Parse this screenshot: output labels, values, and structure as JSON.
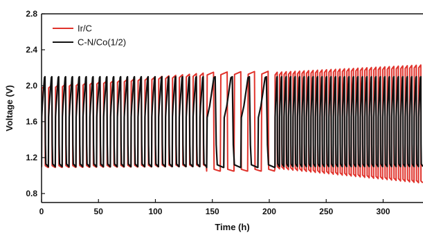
{
  "chart_data": {
    "type": "line",
    "title": "",
    "xlabel": "Time (h)",
    "ylabel": "Voltage (V)",
    "xlim": [
      0,
      335
    ],
    "ylim": [
      0.7,
      2.8
    ],
    "xticks": [
      0,
      50,
      100,
      150,
      200,
      250,
      300
    ],
    "yticks": [
      0.8,
      1.2,
      1.6,
      2.0,
      2.4,
      2.8
    ],
    "legend": "top-left",
    "grid": false,
    "series": [
      {
        "name": "Ir/C",
        "color": "#e0322b",
        "segments": [
          {
            "t0": 0,
            "t1": 145,
            "period": 6,
            "high": [
              2.0,
              2.14
            ],
            "low": [
              1.09,
              1.1
            ]
          },
          {
            "t0": 145,
            "t1": 205,
            "period": 12,
            "high": [
              2.15,
              2.16
            ],
            "low": [
              1.05,
              1.05
            ]
          },
          {
            "t0": 205,
            "t1": 335,
            "period": 4,
            "high": [
              2.15,
              2.23
            ],
            "low": [
              1.08,
              0.92
            ]
          }
        ]
      },
      {
        "name": "C-N/Co(1/2)",
        "color": "#111111",
        "segments": [
          {
            "t0": 0,
            "t1": 145,
            "period": 6,
            "high": [
              2.1,
              2.1
            ],
            "low": [
              1.1,
              1.1
            ]
          },
          {
            "t0": 145,
            "t1": 205,
            "period": 15,
            "high": [
              2.1,
              2.1
            ],
            "low": [
              1.09,
              1.09
            ]
          },
          {
            "t0": 205,
            "t1": 335,
            "period": 4,
            "high": [
              2.1,
              2.1
            ],
            "low": [
              1.1,
              1.1
            ]
          }
        ]
      }
    ]
  }
}
